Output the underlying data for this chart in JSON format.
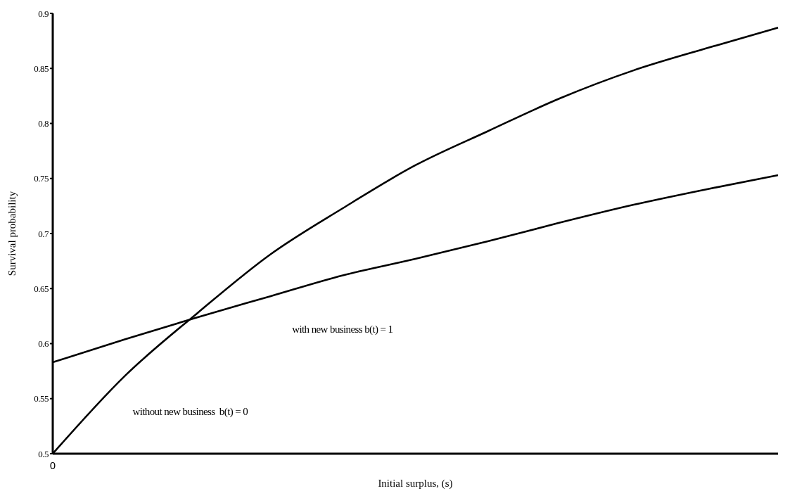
{
  "chart_data": {
    "type": "line",
    "xlabel": "Initial surplus, (s)",
    "ylabel": "Survival probability",
    "categories": [
      "0",
      null,
      null,
      null,
      null,
      null,
      null,
      null,
      null,
      null,
      null
    ],
    "ylim": [
      0.5,
      0.9
    ],
    "yticks": [
      0.5,
      0.55,
      0.6,
      0.65,
      0.7,
      0.75,
      0.8,
      0.85,
      0.9
    ],
    "series": [
      {
        "color": "#000000",
        "values": [
          0.5,
          0.571,
          0.628,
          0.681,
          0.723,
          0.762,
          0.793,
          0.823,
          0.848,
          0.868,
          0.887
        ]
      },
      {
        "color": "#000000",
        "values": [
          0.583,
          0.604,
          0.624,
          0.643,
          0.662,
          0.677,
          0.693,
          0.71,
          0.726,
          0.74,
          0.753
        ]
      }
    ],
    "annotations": [
      "with new business b(t) = 1",
      "without new business  b(t) = 0"
    ],
    "grid": false,
    "marker": "none"
  }
}
